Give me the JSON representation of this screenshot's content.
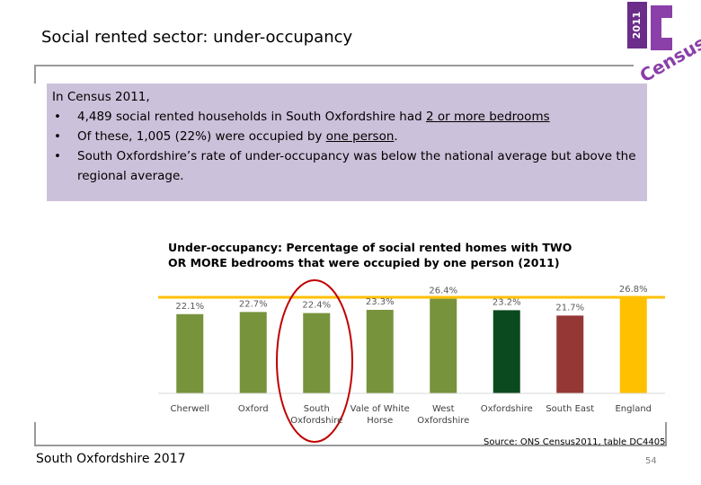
{
  "header": {
    "title": "Social rented sector: under-occupancy"
  },
  "logo": {
    "year": "2011",
    "word": "Census"
  },
  "summary": {
    "intro": "In Census 2011,",
    "bullets": [
      [
        "4,489 social rented households in South Oxfordshire had ",
        "2 or more bedrooms"
      ],
      [
        "Of these, 1,005 (22%) were occupied by ",
        "one person",
        "."
      ],
      [
        "South Oxfordshire’s rate of under-occupancy was below the national average but above the regional average."
      ]
    ]
  },
  "chart_data": {
    "type": "bar",
    "title": "Under-occupancy: Percentage of social rented homes with TWO OR MORE bedrooms that were occupied by one person (2011)",
    "categories": [
      "Cherwell",
      "Oxford",
      "South Oxfordshire",
      "Vale of White Horse",
      "West Oxfordshire",
      "Oxfordshire",
      "South East",
      "England"
    ],
    "values": [
      22.1,
      22.7,
      22.4,
      23.3,
      26.4,
      23.2,
      21.7,
      26.8
    ],
    "value_labels": [
      "22.1%",
      "22.7%",
      "22.4%",
      "23.3%",
      "26.4%",
      "23.2%",
      "21.7%",
      "26.8%"
    ],
    "colors": [
      "#77933c",
      "#77933c",
      "#77933c",
      "#77933c",
      "#77933c",
      "#0b4a1f",
      "#953735",
      "#ffc000"
    ],
    "ylim": [
      0,
      27
    ]
  },
  "footer": {
    "source": "Source: ONS Census2011, table DC4405",
    "left": "South Oxfordshire 2017",
    "page": "54"
  }
}
